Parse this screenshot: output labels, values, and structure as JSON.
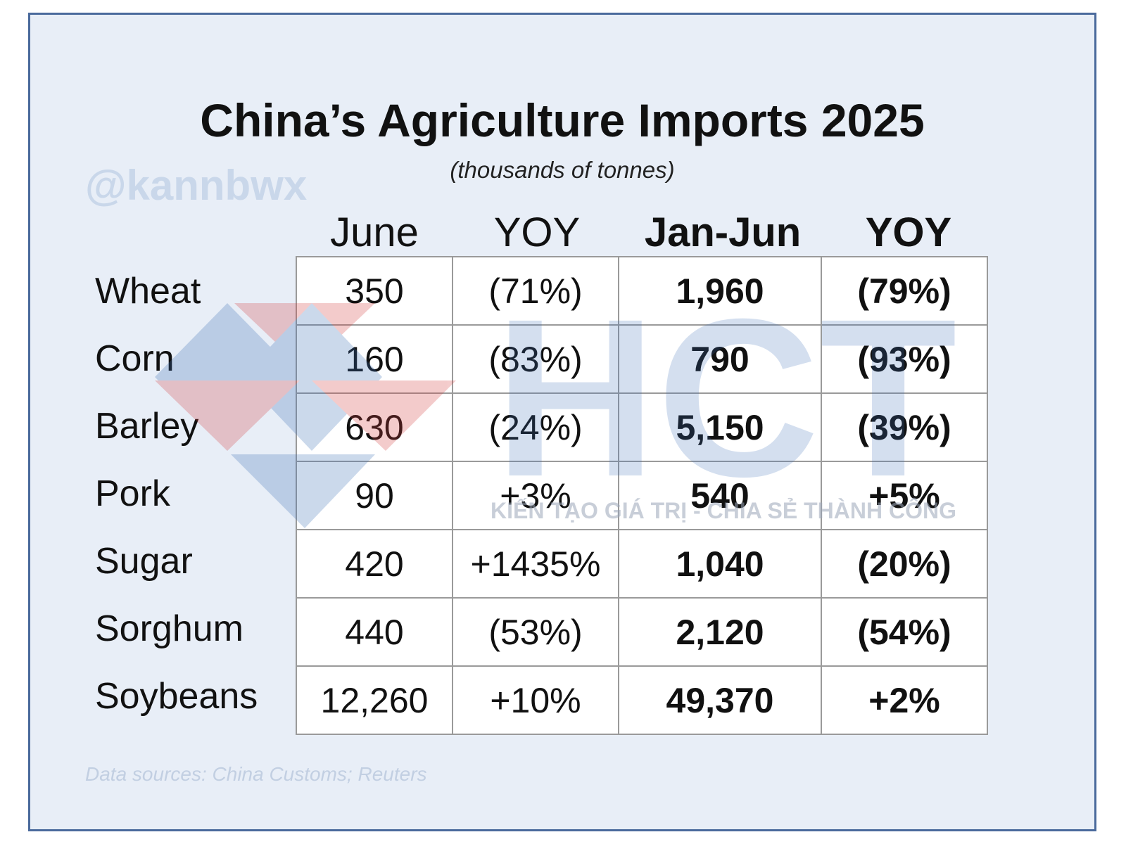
{
  "chart_data": {
    "type": "table",
    "title": "China’s Agriculture Imports 2025",
    "subtitle": "(thousands of tonnes)",
    "columns": [
      "June",
      "YOY",
      "Jan-Jun",
      "YOY"
    ],
    "rows": [
      {
        "label": "Wheat",
        "june": "350",
        "june_yoy": "(71%)",
        "ytd": "1,960",
        "ytd_yoy": "(79%)"
      },
      {
        "label": "Corn",
        "june": "160",
        "june_yoy": "(83%)",
        "ytd": "790",
        "ytd_yoy": "(93%)"
      },
      {
        "label": "Barley",
        "june": "630",
        "june_yoy": "(24%)",
        "ytd": "5,150",
        "ytd_yoy": "(39%)"
      },
      {
        "label": "Pork",
        "june": "90",
        "june_yoy": "+3%",
        "ytd": "540",
        "ytd_yoy": "+5%"
      },
      {
        "label": "Sugar",
        "june": "420",
        "june_yoy": "+1435%",
        "ytd": "1,040",
        "ytd_yoy": "(20%)"
      },
      {
        "label": "Sorghum",
        "june": "440",
        "june_yoy": "(53%)",
        "ytd": "2,120",
        "ytd_yoy": "(54%)"
      },
      {
        "label": "Soybeans",
        "june": "12,260",
        "june_yoy": "+10%",
        "ytd": "49,370",
        "ytd_yoy": "+2%"
      }
    ],
    "source": "Data sources: China Customs; Reuters",
    "negative_color": "#e0242b",
    "positive_color": "#111111"
  },
  "watermark": {
    "handle": "@kannbwx",
    "logo_text": "HCT",
    "tagline": "KIẾN TẠO GIÁ TRỊ - CHIA SẺ THÀNH CÔNG"
  },
  "colors": {
    "panel_background": "#e8eef7",
    "panel_border": "#4a6a9c"
  }
}
